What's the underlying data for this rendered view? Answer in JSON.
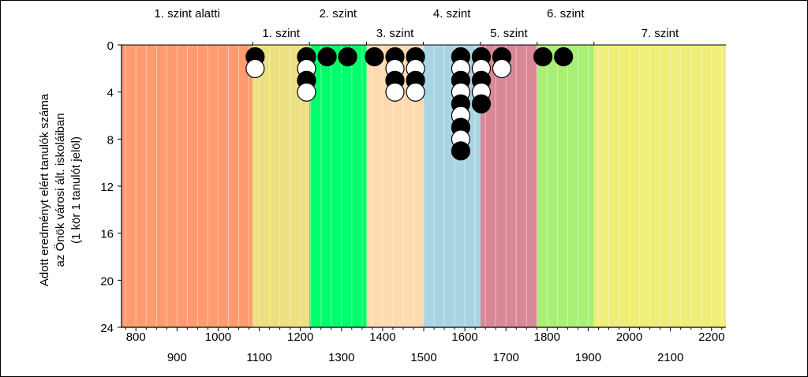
{
  "chart_data": {
    "type": "scatter",
    "ylabel_lines": [
      "Adott eredményt elért tanulók száma",
      "az Önök városi ált. iskoláiban",
      "(1 kör 1 tanulót jelöl)"
    ],
    "xlim": [
      765,
      2235
    ],
    "ylim": [
      0,
      24
    ],
    "y_inverted": true,
    "y_ticks": [
      0,
      4,
      8,
      12,
      16,
      20,
      24
    ],
    "x_ticks_row1": [
      800,
      1000,
      1200,
      1400,
      1600,
      1800,
      2000,
      2200
    ],
    "x_ticks_row2": [
      900,
      1100,
      1300,
      1500,
      1700,
      1900,
      2100
    ],
    "x_ticks_row1_labels": [
      "800",
      "1000",
      "1200",
      "1400",
      "1600",
      "1800",
      "2000",
      "2200"
    ],
    "x_ticks_row2_labels": [
      "900",
      "1100",
      "1300",
      "1500",
      "1700",
      "1900",
      "2100"
    ],
    "y_tick_labels": [
      "0",
      "4",
      "8",
      "12",
      "16",
      "20",
      "24"
    ],
    "grid_minor_x": true,
    "bands": [
      {
        "label": "1. szint alatti",
        "from": 765,
        "to": 1084,
        "color": "#ff9b6f",
        "label_row": 1
      },
      {
        "label": "1. szint",
        "from": 1084,
        "to": 1222,
        "color": "#ede082",
        "label_row": 2
      },
      {
        "label": "2. szint",
        "from": 1222,
        "to": 1361,
        "color": "#00ff6a",
        "label_row": 1
      },
      {
        "label": "3. szint",
        "from": 1361,
        "to": 1499,
        "color": "#ffd9b0",
        "label_row": 2
      },
      {
        "label": "4. szint",
        "from": 1499,
        "to": 1638,
        "color": "#a9d5e2",
        "label_row": 1
      },
      {
        "label": "5. szint",
        "from": 1638,
        "to": 1776,
        "color": "#d98898",
        "label_row": 2
      },
      {
        "label": "6. szint",
        "from": 1776,
        "to": 1914,
        "color": "#a9ef75",
        "label_row": 1
      },
      {
        "label": "7. szint",
        "from": 1914,
        "to": 2235,
        "color": "#eeee78",
        "label_row": 2
      }
    ],
    "stacks": [
      {
        "x": 1090,
        "count": 2
      },
      {
        "x": 1215,
        "count": 4
      },
      {
        "x": 1265,
        "count": 1
      },
      {
        "x": 1315,
        "count": 1
      },
      {
        "x": 1380,
        "count": 1
      },
      {
        "x": 1430,
        "count": 4
      },
      {
        "x": 1480,
        "count": 4
      },
      {
        "x": 1590,
        "count": 9
      },
      {
        "x": 1640,
        "count": 5
      },
      {
        "x": 1690,
        "count": 2
      },
      {
        "x": 1790,
        "count": 1
      },
      {
        "x": 1840,
        "count": 1
      }
    ],
    "marker_colors": {
      "odd": "#000000",
      "even": "#ffffff"
    }
  }
}
